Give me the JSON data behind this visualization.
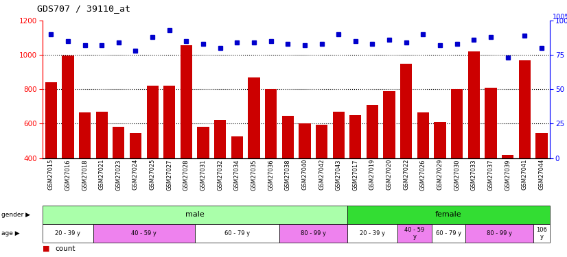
{
  "title": "GDS707 / 39110_at",
  "samples": [
    "GSM27015",
    "GSM27016",
    "GSM27018",
    "GSM27021",
    "GSM27023",
    "GSM27024",
    "GSM27025",
    "GSM27027",
    "GSM27028",
    "GSM27031",
    "GSM27032",
    "GSM27034",
    "GSM27035",
    "GSM27036",
    "GSM27038",
    "GSM27040",
    "GSM27042",
    "GSM27043",
    "GSM27017",
    "GSM27019",
    "GSM27020",
    "GSM27022",
    "GSM27026",
    "GSM27029",
    "GSM27030",
    "GSM27033",
    "GSM27037",
    "GSM27039",
    "GSM27041",
    "GSM27044"
  ],
  "count": [
    840,
    995,
    665,
    670,
    580,
    548,
    820,
    820,
    1055,
    580,
    620,
    525,
    870,
    800,
    645,
    600,
    595,
    670,
    650,
    710,
    790,
    950,
    665,
    610,
    800,
    1020,
    810,
    420,
    970,
    548
  ],
  "percentile": [
    90,
    85,
    82,
    82,
    84,
    78,
    88,
    93,
    85,
    83,
    80,
    84,
    84,
    85,
    83,
    82,
    83,
    90,
    85,
    83,
    86,
    84,
    90,
    82,
    83,
    86,
    88,
    73,
    89,
    80
  ],
  "ylim_left": [
    400,
    1200
  ],
  "ylim_right": [
    0,
    100
  ],
  "yticks_left": [
    400,
    600,
    800,
    1000,
    1200
  ],
  "yticks_right": [
    0,
    25,
    50,
    75,
    100
  ],
  "bar_color": "#cc0000",
  "dot_color": "#0000cc",
  "gender_male_color": "#aaffaa",
  "gender_female_color": "#33dd33",
  "gender_groups": [
    {
      "label": "male",
      "start": 0,
      "end": 18
    },
    {
      "label": "female",
      "start": 18,
      "end": 30
    }
  ],
  "age_groups": [
    {
      "label": "20 - 39 y",
      "start": 0,
      "end": 3,
      "color": "#ffffff"
    },
    {
      "label": "40 - 59 y",
      "start": 3,
      "end": 9,
      "color": "#ee82ee"
    },
    {
      "label": "60 - 79 y",
      "start": 9,
      "end": 14,
      "color": "#ffffff"
    },
    {
      "label": "80 - 99 y",
      "start": 14,
      "end": 18,
      "color": "#ee82ee"
    },
    {
      "label": "20 - 39 y",
      "start": 18,
      "end": 21,
      "color": "#ffffff"
    },
    {
      "label": "40 - 59\ny",
      "start": 21,
      "end": 23,
      "color": "#ee82ee"
    },
    {
      "label": "60 - 79 y",
      "start": 23,
      "end": 25,
      "color": "#ffffff"
    },
    {
      "label": "80 - 99 y",
      "start": 25,
      "end": 29,
      "color": "#ee82ee"
    },
    {
      "label": "106\ny",
      "start": 29,
      "end": 30,
      "color": "#ffffff"
    }
  ]
}
